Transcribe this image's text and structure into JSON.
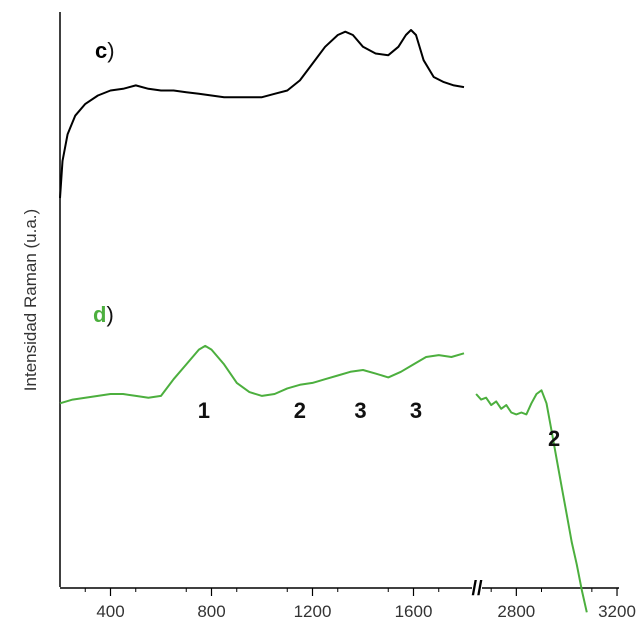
{
  "chart_data": {
    "type": "line",
    "ylabel": "Intensidad Raman (u.a.)",
    "xlabel": "",
    "x_ticks": [
      400,
      800,
      1200,
      1600,
      2800,
      3200
    ],
    "axis_break": "//",
    "x_segments": [
      [
        200,
        1800
      ],
      [
        2600,
        3200
      ]
    ],
    "y_ticks_shown": false,
    "series": [
      {
        "name": "c)",
        "label_letter": "c",
        "label_paren": ")",
        "color": "#000000",
        "letter_color": "#000000",
        "x": [
          200,
          210,
          230,
          260,
          300,
          350,
          400,
          450,
          500,
          550,
          600,
          650,
          700,
          750,
          800,
          850,
          900,
          950,
          1000,
          1050,
          1100,
          1150,
          1200,
          1250,
          1300,
          1330,
          1360,
          1400,
          1450,
          1500,
          1540,
          1570,
          1590,
          1610,
          1640,
          1680,
          1720,
          1760,
          1800
        ],
        "y": [
          0.0,
          0.22,
          0.38,
          0.49,
          0.56,
          0.61,
          0.64,
          0.65,
          0.67,
          0.65,
          0.64,
          0.64,
          0.63,
          0.62,
          0.61,
          0.6,
          0.6,
          0.6,
          0.6,
          0.62,
          0.64,
          0.7,
          0.8,
          0.9,
          0.97,
          0.99,
          0.97,
          0.9,
          0.86,
          0.85,
          0.9,
          0.97,
          1.0,
          0.97,
          0.82,
          0.72,
          0.69,
          0.67,
          0.66
        ]
      },
      {
        "name": "d)",
        "label_letter": "d",
        "label_paren": ")",
        "color": "#4caf3e",
        "letter_color": "#4caf3e",
        "x": [
          200,
          250,
          300,
          350,
          400,
          450,
          500,
          550,
          600,
          650,
          700,
          750,
          775,
          800,
          850,
          900,
          950,
          1000,
          1050,
          1100,
          1150,
          1200,
          1250,
          1300,
          1350,
          1400,
          1450,
          1500,
          1550,
          1600,
          1650,
          1700,
          1750,
          1800,
          2640,
          2660,
          2680,
          2700,
          2720,
          2740,
          2760,
          2780,
          2800,
          2820,
          2840,
          2860,
          2880,
          2900,
          2920,
          2940,
          2960,
          2980,
          3000,
          3020,
          3040,
          3060,
          3080
        ],
        "y": [
          0.55,
          0.57,
          0.58,
          0.59,
          0.6,
          0.6,
          0.59,
          0.58,
          0.59,
          0.68,
          0.76,
          0.84,
          0.86,
          0.84,
          0.76,
          0.66,
          0.61,
          0.59,
          0.6,
          0.63,
          0.65,
          0.66,
          0.68,
          0.7,
          0.72,
          0.73,
          0.71,
          0.69,
          0.72,
          0.76,
          0.8,
          0.81,
          0.8,
          0.82,
          0.6,
          0.57,
          0.58,
          0.54,
          0.56,
          0.52,
          0.54,
          0.5,
          0.49,
          0.5,
          0.49,
          0.55,
          0.6,
          0.62,
          0.55,
          0.4,
          0.25,
          0.1,
          -0.05,
          -0.2,
          -0.32,
          -0.46,
          -0.58
        ]
      }
    ],
    "peak_labels": [
      {
        "text": "1",
        "x": 770
      },
      {
        "text": "2",
        "x": 1150
      },
      {
        "text": "3",
        "x": 1390
      },
      {
        "text": "3",
        "x": 1610
      },
      {
        "text": "2",
        "x": 2950
      }
    ]
  }
}
